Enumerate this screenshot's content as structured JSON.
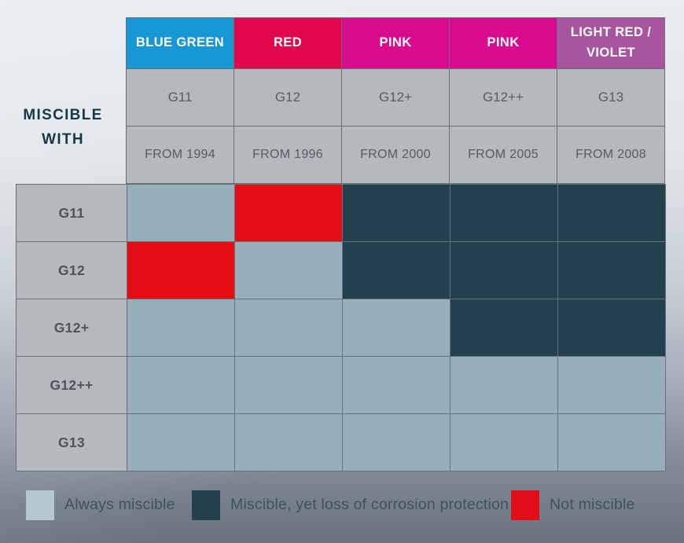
{
  "chart_data": {
    "type": "table",
    "corner_label": "MISCIBLE WITH",
    "columns": [
      {
        "color_name": "BLUE GREEN",
        "color": "#1797d4",
        "code": "G11",
        "from": "FROM 1994"
      },
      {
        "color_name": "RED",
        "color": "#e2074a",
        "code": "G12",
        "from": "FROM 1996"
      },
      {
        "color_name": "PINK",
        "color": "#d90a8d",
        "code": "G12+",
        "from": "FROM 2000"
      },
      {
        "color_name": "PINK",
        "color": "#d90a8d",
        "code": "G12++",
        "from": "FROM 2005"
      },
      {
        "color_name": "LIGHT RED / VIOLET",
        "color": "#a9549e",
        "code": "G13",
        "from": "FROM 2008"
      }
    ],
    "rows": [
      {
        "label": "G11",
        "cells": [
          "always",
          "not",
          "loss",
          "loss",
          "loss"
        ]
      },
      {
        "label": "G12",
        "cells": [
          "not",
          "always",
          "loss",
          "loss",
          "loss"
        ]
      },
      {
        "label": "G12+",
        "cells": [
          "always",
          "always",
          "always",
          "loss",
          "loss"
        ]
      },
      {
        "label": "G12++",
        "cells": [
          "always",
          "always",
          "always",
          "always",
          "always"
        ]
      },
      {
        "label": "G13",
        "cells": [
          "always",
          "always",
          "always",
          "always",
          "always"
        ]
      }
    ],
    "cell_states": {
      "always": {
        "label": "Always miscible",
        "cell_color": "#97aebc",
        "legend_color": "#b7c7d1"
      },
      "loss": {
        "label": "Miscible, yet loss of corrosion protection",
        "cell_color": "#22404e",
        "legend_color": "#25404d"
      },
      "not": {
        "label": "Not miscible",
        "cell_color": "#e30d13",
        "legend_color": "#e20d18"
      }
    },
    "legend_order": [
      "always",
      "loss",
      "not"
    ]
  },
  "theme": {
    "gridline_color": "#697077",
    "label_cell_bg": "rgba(240,245,248,0.55)",
    "background_top": "#e9edf0",
    "background_bottom": "#68737e",
    "corner_label_color": "#16384a"
  }
}
